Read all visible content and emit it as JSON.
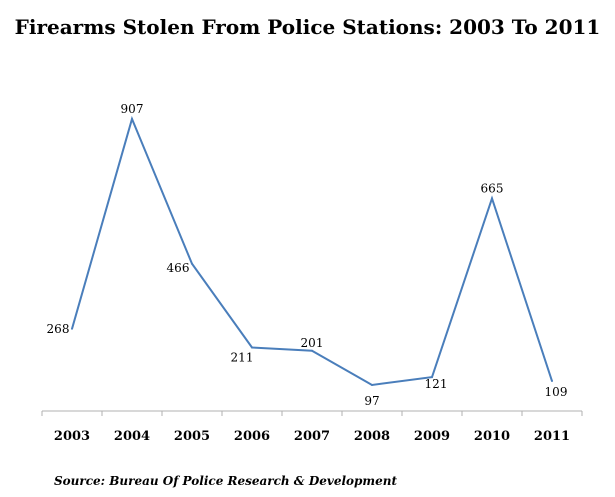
{
  "chart_data": {
    "type": "line",
    "title": "Firearms Stolen From Police Stations: 2003 To 2011",
    "source": "Source: Bureau Of Police Research & Development",
    "categories": [
      "2003",
      "2004",
      "2005",
      "2006",
      "2007",
      "2008",
      "2009",
      "2010",
      "2011"
    ],
    "values": [
      268,
      907,
      466,
      211,
      201,
      97,
      121,
      665,
      109
    ],
    "data_labels": [
      "268",
      "907",
      "466",
      "211",
      "201",
      "97",
      "121",
      "665",
      "109"
    ],
    "xlabel": "",
    "ylabel": "",
    "grid": false,
    "legend": "none",
    "line_color": "#4a7ebb"
  }
}
